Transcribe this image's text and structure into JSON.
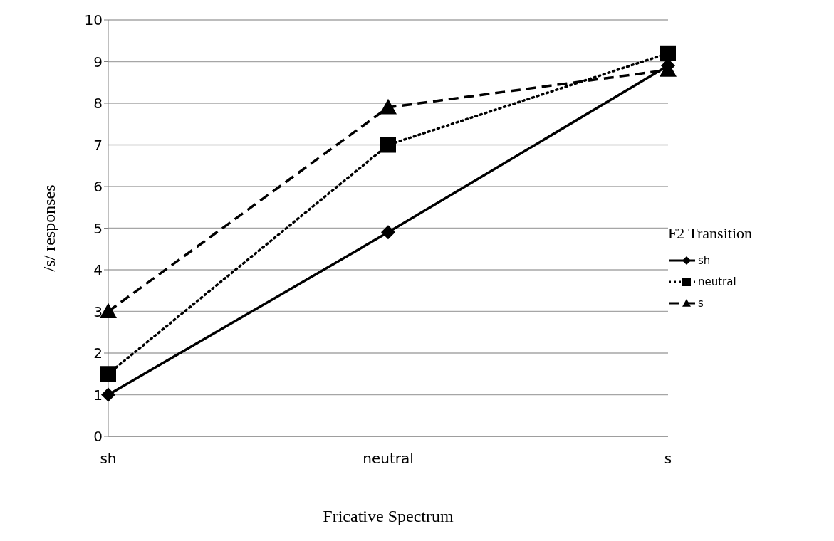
{
  "chart_data": {
    "type": "line",
    "xlabel": "Fricative Spectrum",
    "ylabel": "/s/ responses",
    "legend_title": "F2 Transition",
    "categories": [
      "sh",
      "neutral",
      "s"
    ],
    "series": [
      {
        "name": "sh",
        "color": "#000000",
        "values": [
          1,
          4.9,
          8.9
        ],
        "marker": "diamond",
        "line_style": "solid"
      },
      {
        "name": "neutral",
        "color": "#000000",
        "values": [
          1.5,
          7,
          9.2
        ],
        "marker": "square",
        "line_style": "dotted"
      },
      {
        "name": "s",
        "color": "#000000",
        "values": [
          3,
          7.9,
          8.8
        ],
        "marker": "triangle",
        "line_style": "dashed"
      }
    ],
    "ylim": [
      0,
      10
    ],
    "yticks": [
      0,
      1,
      2,
      3,
      4,
      5,
      6,
      7,
      8,
      9,
      10
    ],
    "grid": "y",
    "legend": "right"
  }
}
